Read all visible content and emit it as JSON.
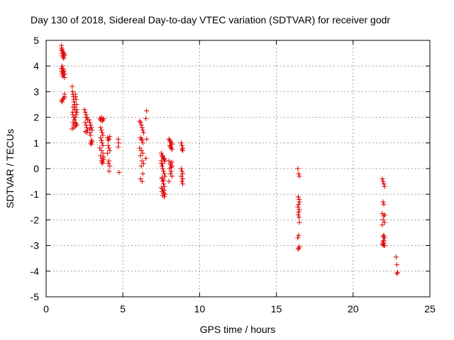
{
  "chart_data": {
    "type": "scatter",
    "title": "Day 130 of 2018, Sidereal Day-to-day VTEC variation (SDTVAR) for receiver godr",
    "xlabel": "GPS time / hours",
    "ylabel": "SDTVAR / TECUs",
    "xlim": [
      0,
      25
    ],
    "ylim": [
      -5,
      5
    ],
    "xticks": [
      0,
      5,
      10,
      15,
      20,
      25
    ],
    "yticks": [
      -5,
      -4,
      -3,
      -2,
      -1,
      0,
      1,
      2,
      3,
      4,
      5
    ],
    "grid": true,
    "marker": "plus",
    "colors": {
      "series": "#e00000",
      "grid": "#a0a0a0",
      "axis": "#000000"
    },
    "series": [
      {
        "name": "SDTVAR",
        "x": [
          1.0,
          1.0,
          1.02,
          1.05,
          1.05,
          1.08,
          1.1,
          1.1,
          1.12,
          1.15,
          1.15,
          1.18,
          1.2,
          1.0,
          1.02,
          1.05,
          1.08,
          1.1,
          1.12,
          1.15,
          1.18,
          1.2,
          1.05,
          1.1,
          1.15,
          1.2,
          1.0,
          1.05,
          1.1,
          1.15,
          1.2,
          1.2,
          1.7,
          1.72,
          1.75,
          1.78,
          1.8,
          1.82,
          1.85,
          1.88,
          1.9,
          1.92,
          1.95,
          1.98,
          2.0,
          1.72,
          1.75,
          1.8,
          1.85,
          1.9,
          1.95,
          2.0,
          1.75,
          1.8,
          1.85,
          1.9,
          1.95,
          1.7,
          1.8,
          1.9,
          2.0,
          1.75,
          1.85,
          1.95,
          2.5,
          2.55,
          2.6,
          2.65,
          2.7,
          2.55,
          2.6,
          2.65,
          2.7,
          2.55,
          2.65,
          2.6,
          2.8,
          2.85,
          2.9,
          2.95,
          3.0,
          2.85,
          2.9,
          2.95,
          2.9,
          2.95,
          3.0,
          2.85,
          3.5,
          3.55,
          3.6,
          3.65,
          3.7,
          3.75,
          3.55,
          3.6,
          3.65,
          3.7,
          3.55,
          3.6,
          3.65,
          3.7,
          3.5,
          3.6,
          3.7,
          3.55,
          3.65,
          3.75,
          3.6,
          3.7,
          3.65,
          3.75,
          4.0,
          4.05,
          4.1,
          4.15,
          4.05,
          4.1,
          4.15,
          4.0,
          4.1,
          4.05,
          4.15,
          4.1,
          4.7,
          4.72,
          4.7,
          4.75,
          6.1,
          6.15,
          6.2,
          6.25,
          6.3,
          6.35,
          6.15,
          6.2,
          6.25,
          6.3,
          6.1,
          6.2,
          6.3,
          6.15,
          6.25,
          6.35,
          6.2,
          6.3,
          6.15,
          6.25,
          6.55,
          6.5,
          6.55,
          6.5,
          7.5,
          7.55,
          7.6,
          7.65,
          7.7,
          7.75,
          7.5,
          7.55,
          7.6,
          7.65,
          7.7,
          7.75,
          7.55,
          7.6,
          7.65,
          7.7,
          7.5,
          7.6,
          7.7,
          7.55,
          7.65,
          7.75,
          7.6,
          7.7,
          7.55,
          7.65,
          7.6,
          7.7,
          7.5,
          7.6,
          8.0,
          8.05,
          8.1,
          8.15,
          8.2,
          8.05,
          8.1,
          8.15,
          8.2,
          8.0,
          8.1,
          8.2,
          8.05,
          8.15,
          8.1,
          8.2,
          8.0,
          8.15,
          8.1,
          8.2,
          8.8,
          8.85,
          8.9,
          8.85,
          8.9,
          8.8,
          8.85,
          8.9,
          8.8,
          8.9,
          8.85,
          8.9,
          16.4,
          16.45,
          16.5,
          16.42,
          16.48,
          16.5,
          16.45,
          16.4,
          16.5,
          16.45,
          16.42,
          16.48,
          16.5,
          16.45,
          16.4,
          16.5,
          16.45,
          16.42,
          21.9,
          21.95,
          22.0,
          22.05,
          21.95,
          22.0,
          21.9,
          22.05,
          22.0,
          21.95,
          22.05,
          21.9,
          22.0,
          21.95,
          22.05,
          22.0,
          21.95,
          22.0,
          21.9,
          22.0,
          22.05,
          21.95,
          22.8,
          22.85,
          22.9,
          22.85
        ],
        "y": [
          4.8,
          4.7,
          4.6,
          4.5,
          4.65,
          4.4,
          4.55,
          4.35,
          4.45,
          4.5,
          4.3,
          4.4,
          4.45,
          3.9,
          3.8,
          3.7,
          3.6,
          3.75,
          3.85,
          3.65,
          3.7,
          3.55,
          4.0,
          3.9,
          3.8,
          3.7,
          2.65,
          2.6,
          2.7,
          2.75,
          2.8,
          2.9,
          3.2,
          3.0,
          2.9,
          2.8,
          2.7,
          2.6,
          2.5,
          2.4,
          2.9,
          2.8,
          2.7,
          2.5,
          2.3,
          2.2,
          2.1,
          2.0,
          1.9,
          2.0,
          2.1,
          2.2,
          1.8,
          1.7,
          1.9,
          1.8,
          1.75,
          1.55,
          1.6,
          1.65,
          1.7,
          2.4,
          2.3,
          2.2,
          2.3,
          2.2,
          2.1,
          2.0,
          1.9,
          1.8,
          1.7,
          1.6,
          1.5,
          1.45,
          1.4,
          2.0,
          1.9,
          1.8,
          1.7,
          1.6,
          1.5,
          1.4,
          1.3,
          1.1,
          1.0,
          0.95,
          1.05,
          1.55,
          1.95,
          1.9,
          2.0,
          1.85,
          1.9,
          1.95,
          1.6,
          1.5,
          1.4,
          1.3,
          1.2,
          1.1,
          1.0,
          0.9,
          0.8,
          0.7,
          0.6,
          0.5,
          0.4,
          0.35,
          0.3,
          0.25,
          0.2,
          0.45,
          1.2,
          1.1,
          1.15,
          1.25,
          0.9,
          0.8,
          0.7,
          0.6,
          0.3,
          0.2,
          0.1,
          -0.1,
          1.15,
          1.0,
          0.85,
          -0.15,
          1.85,
          1.8,
          1.7,
          1.6,
          1.5,
          1.4,
          1.2,
          1.15,
          1.1,
          1.0,
          0.8,
          0.7,
          0.6,
          0.5,
          0.3,
          0.2,
          0.1,
          -0.2,
          -0.4,
          -0.5,
          2.25,
          1.95,
          1.15,
          0.4,
          0.6,
          0.5,
          0.45,
          0.4,
          0.35,
          0.3,
          0.2,
          0.1,
          0.0,
          -0.1,
          -0.2,
          -0.3,
          -0.4,
          -0.5,
          -0.6,
          -0.7,
          -0.75,
          -0.8,
          -0.85,
          -0.9,
          -0.95,
          -1.0,
          -1.05,
          -1.1,
          -0.35,
          -0.45,
          0.5,
          0.4,
          0.3,
          0.2,
          1.15,
          1.1,
          1.05,
          1.0,
          0.95,
          0.9,
          0.85,
          0.8,
          0.75,
          0.3,
          0.2,
          0.1,
          0.0,
          -0.1,
          -0.2,
          -0.3,
          -0.5,
          0.05,
          0.15,
          0.25,
          1.0,
          0.9,
          0.8,
          0.75,
          0.7,
          0.0,
          -0.1,
          -0.2,
          -0.3,
          -0.4,
          -0.5,
          -0.6,
          0.0,
          -0.2,
          -0.3,
          -1.1,
          -1.2,
          -1.3,
          -1.4,
          -1.5,
          -1.6,
          -1.7,
          -1.8,
          -1.9,
          -2.1,
          -2.6,
          -2.7,
          -3.05,
          -3.1,
          -3.15,
          -0.4,
          -0.5,
          -0.6,
          -0.7,
          -1.3,
          -1.4,
          -1.75,
          -1.8,
          -1.85,
          -2.0,
          -2.1,
          -2.2,
          -2.6,
          -2.65,
          -2.7,
          -2.8,
          -2.85,
          -2.9,
          -2.95,
          -3.0,
          -3.0,
          -2.95,
          -3.45,
          -3.75,
          -4.05,
          -4.1
        ]
      }
    ]
  }
}
